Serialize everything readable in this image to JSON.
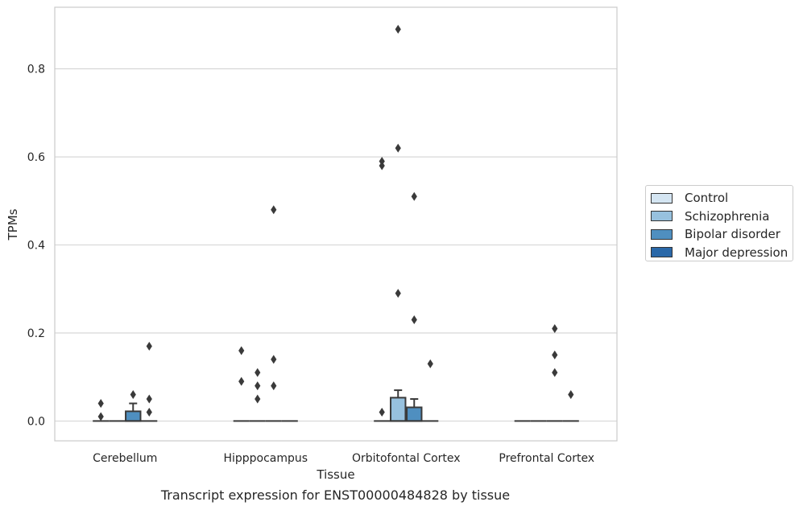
{
  "caption": "Transcript expression for ENST00000484828 by tissue",
  "colors": {
    "control": "#d4e5f2",
    "schizophrenia": "#97c1de",
    "bipolar": "#4f8fc0",
    "depression": "#2a68a8",
    "grid": "#d3d3d3",
    "frame": "#cccccc",
    "marks": "#3a3a3a"
  },
  "chart_data": {
    "type": "box",
    "xlabel": "Tissue",
    "ylabel": "TPMs",
    "ylim": [
      -0.045,
      0.94
    ],
    "yticks": [
      "0.0",
      "0.2",
      "0.4",
      "0.6",
      "0.8"
    ],
    "ytick_values": [
      0.0,
      0.2,
      0.4,
      0.6,
      0.8
    ],
    "grid": true,
    "legend_position": "right",
    "categories": [
      "Cerebellum",
      "Hipppocampus",
      "Orbitofontal Cortex",
      "Prefrontal Cortex"
    ],
    "series": [
      {
        "name": "Control",
        "color_key": "control"
      },
      {
        "name": "Schizophrenia",
        "color_key": "schizophrenia"
      },
      {
        "name": "Bipolar disorder",
        "color_key": "bipolar"
      },
      {
        "name": "Major depression",
        "color_key": "depression"
      }
    ],
    "boxes": [
      {
        "category": 0,
        "series": 0,
        "q1": 0,
        "median": 0,
        "q3": 0,
        "whisker_low": 0,
        "whisker_high": 0,
        "outliers": [
          0.01,
          0.04
        ]
      },
      {
        "category": 0,
        "series": 1,
        "q1": 0,
        "median": 0,
        "q3": 0,
        "whisker_low": 0,
        "whisker_high": 0,
        "outliers": []
      },
      {
        "category": 0,
        "series": 2,
        "q1": 0,
        "median": 0,
        "q3": 0.022,
        "whisker_low": 0,
        "whisker_high": 0.04,
        "outliers": [
          0.06
        ]
      },
      {
        "category": 0,
        "series": 3,
        "q1": 0,
        "median": 0,
        "q3": 0,
        "whisker_low": 0,
        "whisker_high": 0,
        "outliers": [
          0.17,
          0.05,
          0.02
        ]
      },
      {
        "category": 1,
        "series": 0,
        "q1": 0,
        "median": 0,
        "q3": 0,
        "whisker_low": 0,
        "whisker_high": 0,
        "outliers": [
          0.16,
          0.09
        ]
      },
      {
        "category": 1,
        "series": 1,
        "q1": 0,
        "median": 0,
        "q3": 0,
        "whisker_low": 0,
        "whisker_high": 0,
        "outliers": [
          0.11,
          0.08,
          0.05
        ]
      },
      {
        "category": 1,
        "series": 2,
        "q1": 0,
        "median": 0,
        "q3": 0,
        "whisker_low": 0,
        "whisker_high": 0,
        "outliers": [
          0.48,
          0.14,
          0.08
        ]
      },
      {
        "category": 1,
        "series": 3,
        "q1": 0,
        "median": 0,
        "q3": 0,
        "whisker_low": 0,
        "whisker_high": 0,
        "outliers": []
      },
      {
        "category": 2,
        "series": 0,
        "q1": 0,
        "median": 0,
        "q3": 0,
        "whisker_low": 0,
        "whisker_high": 0,
        "outliers": [
          0.59,
          0.58,
          0.02
        ]
      },
      {
        "category": 2,
        "series": 1,
        "q1": 0,
        "median": 0,
        "q3": 0.053,
        "whisker_low": 0,
        "whisker_high": 0.07,
        "outliers": [
          0.89,
          0.62,
          0.29
        ]
      },
      {
        "category": 2,
        "series": 2,
        "q1": 0,
        "median": 0,
        "q3": 0.031,
        "whisker_low": 0,
        "whisker_high": 0.05,
        "outliers": [
          0.51,
          0.23
        ]
      },
      {
        "category": 2,
        "series": 3,
        "q1": 0,
        "median": 0,
        "q3": 0,
        "whisker_low": 0,
        "whisker_high": 0,
        "outliers": [
          0.13
        ]
      },
      {
        "category": 3,
        "series": 0,
        "q1": 0,
        "median": 0,
        "q3": 0,
        "whisker_low": 0,
        "whisker_high": 0,
        "outliers": []
      },
      {
        "category": 3,
        "series": 1,
        "q1": 0,
        "median": 0,
        "q3": 0,
        "whisker_low": 0,
        "whisker_high": 0,
        "outliers": []
      },
      {
        "category": 3,
        "series": 2,
        "q1": 0,
        "median": 0,
        "q3": 0,
        "whisker_low": 0,
        "whisker_high": 0,
        "outliers": [
          0.21,
          0.15,
          0.11
        ]
      },
      {
        "category": 3,
        "series": 3,
        "q1": 0,
        "median": 0,
        "q3": 0,
        "whisker_low": 0,
        "whisker_high": 0,
        "outliers": [
          0.06
        ]
      }
    ]
  }
}
